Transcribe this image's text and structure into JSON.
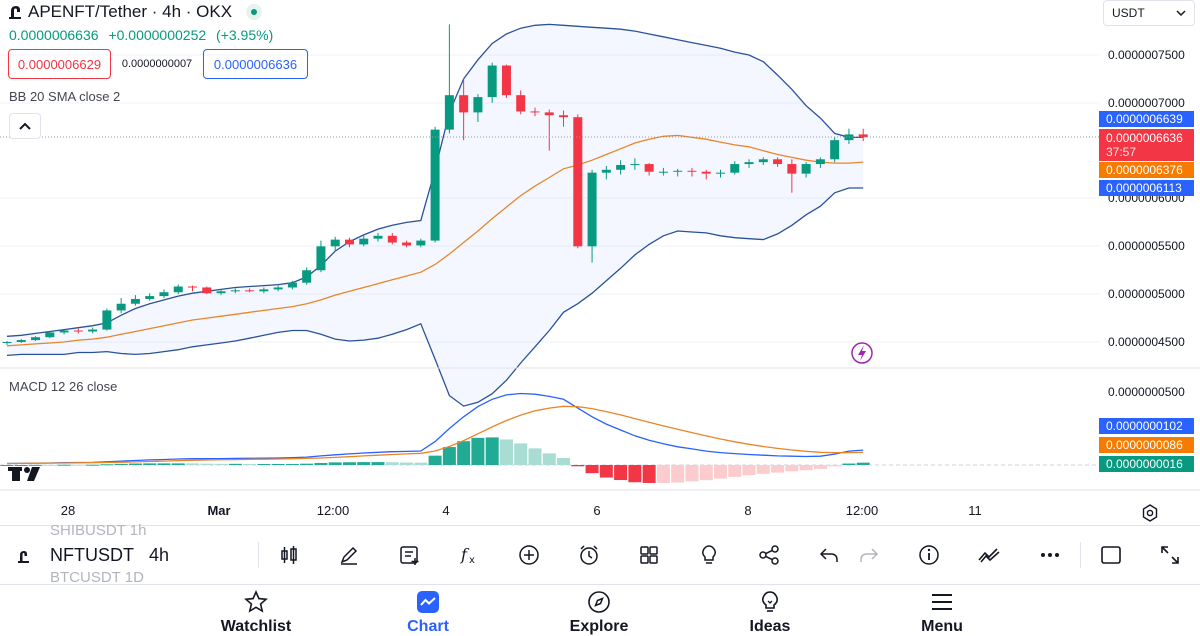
{
  "header": {
    "symbol_title": "APENFT/Tether · 4h · OKX",
    "last_price": "0.0000006636",
    "change_abs": "+0.0000000252",
    "change_pct": "(+3.95%)",
    "bid": "0.0000006629",
    "spread": "0.0000000007",
    "ask": "0.0000006636",
    "currency": "USDT"
  },
  "indicators": {
    "bb_legend": "BB 20 SMA close 2",
    "macd_legend": "MACD 12 26 close"
  },
  "price_axis": {
    "labels": [
      "0.0000007500",
      "0.0000007000",
      "0.0000006000",
      "0.0000005500",
      "0.0000005000",
      "0.0000004500"
    ],
    "tags": {
      "bb_upper": "0.0000006639",
      "last": "0.0000006636",
      "countdown": "37:57",
      "bb_basis": "0.0000006376",
      "bb_lower": "0.0000006113"
    }
  },
  "macd_axis": {
    "labels": [
      "0.0000000500"
    ],
    "tags": {
      "macd": "0.0000000102",
      "signal": "0.0000000086",
      "hist": "0.0000000016"
    }
  },
  "time_axis": {
    "labels": [
      "28",
      "Mar",
      "12:00",
      "4",
      "6",
      "8",
      "12:00",
      "11"
    ]
  },
  "colors": {
    "up": "#089981",
    "down": "#f23645",
    "bb_band": "#2a5298",
    "bb_basis": "#e8862a",
    "macd_line": "#2962ff",
    "signal_line": "#e8862a",
    "accent": "#2962ff"
  },
  "toolbar": {
    "ghost_above": "SHIBUSDT  1h",
    "symbol": "NFTUSDT",
    "interval": "4h",
    "ghost_below": "BTCUSDT  1D",
    "buttons": [
      "candles-icon",
      "draw-icon",
      "add-note-icon",
      "indicators-icon",
      "add-icon",
      "alert-icon",
      "layouts-icon",
      "ideas-bulb-icon",
      "share-icon",
      "undo-icon",
      "redo-icon",
      "info-icon",
      "trend-icon",
      "more-icon",
      "fullscreen-square-icon",
      "expand-icon"
    ]
  },
  "nav": {
    "items": [
      {
        "label": "Watchlist",
        "icon": "star-icon"
      },
      {
        "label": "Chart",
        "icon": "chart-icon"
      },
      {
        "label": "Explore",
        "icon": "compass-icon"
      },
      {
        "label": "Ideas",
        "icon": "bulb-icon"
      },
      {
        "label": "Menu",
        "icon": "menu-icon"
      }
    ]
  },
  "chart_data": {
    "type": "candlestick",
    "title": "APENFT/Tether · 4h · OKX",
    "ylim": [
      4.3e-07,
      7.9e-07
    ],
    "candles": [
      [
        4.49e-07,
        4.5e-07,
        4.47e-07,
        4.51e-07
      ],
      [
        4.5e-07,
        4.52e-07,
        4.49e-07,
        4.53e-07
      ],
      [
        4.52e-07,
        4.55e-07,
        4.51e-07,
        4.56e-07
      ],
      [
        4.55e-07,
        4.6e-07,
        4.54e-07,
        4.61e-07
      ],
      [
        4.6e-07,
        4.62e-07,
        4.58e-07,
        4.63e-07
      ],
      [
        4.62e-07,
        4.61e-07,
        4.59e-07,
        4.64e-07
      ],
      [
        4.61e-07,
        4.63e-07,
        4.59e-07,
        4.65e-07
      ],
      [
        4.63e-07,
        4.83e-07,
        4.62e-07,
        4.85e-07
      ],
      [
        4.83e-07,
        4.9e-07,
        4.8e-07,
        4.96e-07
      ],
      [
        4.9e-07,
        4.95e-07,
        4.88e-07,
        4.99e-07
      ],
      [
        4.95e-07,
        4.98e-07,
        4.93e-07,
        5.01e-07
      ],
      [
        4.98e-07,
        5.02e-07,
        4.96e-07,
        5.05e-07
      ],
      [
        5.02e-07,
        5.08e-07,
        5e-07,
        5.1e-07
      ],
      [
        5.08e-07,
        5.07e-07,
        5.03e-07,
        5.09e-07
      ],
      [
        5.07e-07,
        5.01e-07,
        5e-07,
        5.08e-07
      ],
      [
        5.01e-07,
        5.03e-07,
        4.99e-07,
        5.05e-07
      ],
      [
        5.03e-07,
        5.04e-07,
        5.01e-07,
        5.06e-07
      ],
      [
        5.04e-07,
        5.03e-07,
        5.02e-07,
        5.06e-07
      ],
      [
        5.03e-07,
        5.05e-07,
        5.01e-07,
        5.07e-07
      ],
      [
        5.05e-07,
        5.07e-07,
        5.03e-07,
        5.09e-07
      ],
      [
        5.07e-07,
        5.12e-07,
        5.05e-07,
        5.14e-07
      ],
      [
        5.12e-07,
        5.25e-07,
        5.1e-07,
        5.28e-07
      ],
      [
        5.25e-07,
        5.5e-07,
        5.23e-07,
        5.56e-07
      ],
      [
        5.5e-07,
        5.57e-07,
        5.45e-07,
        5.6e-07
      ],
      [
        5.57e-07,
        5.52e-07,
        5.49e-07,
        5.59e-07
      ],
      [
        5.52e-07,
        5.58e-07,
        5.5e-07,
        5.61e-07
      ],
      [
        5.58e-07,
        5.61e-07,
        5.55e-07,
        5.64e-07
      ],
      [
        5.61e-07,
        5.54e-07,
        5.52e-07,
        5.64e-07
      ],
      [
        5.54e-07,
        5.51e-07,
        5.49e-07,
        5.56e-07
      ],
      [
        5.51e-07,
        5.56e-07,
        5.49e-07,
        5.58e-07
      ],
      [
        5.56e-07,
        6.72e-07,
        5.54e-07,
        6.75e-07
      ],
      [
        6.72e-07,
        7.08e-07,
        6.68e-07,
        7.82e-07
      ],
      [
        7.08e-07,
        6.9e-07,
        6.61e-07,
        7.25e-07
      ],
      [
        6.9e-07,
        7.06e-07,
        6.8e-07,
        7.09e-07
      ],
      [
        7.06e-07,
        7.39e-07,
        7e-07,
        7.42e-07
      ],
      [
        7.39e-07,
        7.08e-07,
        7.05e-07,
        7.4e-07
      ],
      [
        7.08e-07,
        6.91e-07,
        6.88e-07,
        7.13e-07
      ],
      [
        6.91e-07,
        6.9e-07,
        6.86e-07,
        6.95e-07
      ],
      [
        6.9e-07,
        6.87e-07,
        6.5e-07,
        6.93e-07
      ],
      [
        6.87e-07,
        6.85e-07,
        6.75e-07,
        6.92e-07
      ],
      [
        6.85e-07,
        5.5e-07,
        5.48e-07,
        6.88e-07
      ],
      [
        5.5e-07,
        6.27e-07,
        5.33e-07,
        6.3e-07
      ],
      [
        6.27e-07,
        6.3e-07,
        6.2e-07,
        6.34e-07
      ],
      [
        6.3e-07,
        6.35e-07,
        6.25e-07,
        6.4e-07
      ],
      [
        6.35e-07,
        6.36e-07,
        6.3e-07,
        6.42e-07
      ],
      [
        6.36e-07,
        6.28e-07,
        6.24e-07,
        6.37e-07
      ],
      [
        6.28e-07,
        6.28e-07,
        6.24e-07,
        6.32e-07
      ],
      [
        6.28e-07,
        6.29e-07,
        6.23e-07,
        6.31e-07
      ],
      [
        6.29e-07,
        6.28e-07,
        6.23e-07,
        6.32e-07
      ],
      [
        6.28e-07,
        6.26e-07,
        6.2e-07,
        6.3e-07
      ],
      [
        6.26e-07,
        6.27e-07,
        6.22e-07,
        6.3e-07
      ],
      [
        6.27e-07,
        6.36e-07,
        6.25e-07,
        6.39e-07
      ],
      [
        6.36e-07,
        6.38e-07,
        6.32e-07,
        6.41e-07
      ],
      [
        6.38e-07,
        6.41e-07,
        6.35e-07,
        6.43e-07
      ],
      [
        6.41e-07,
        6.36e-07,
        6.33e-07,
        6.43e-07
      ],
      [
        6.36e-07,
        6.26e-07,
        6.06e-07,
        6.41e-07
      ],
      [
        6.26e-07,
        6.36e-07,
        6.22e-07,
        6.38e-07
      ],
      [
        6.36e-07,
        6.41e-07,
        6.32e-07,
        6.43e-07
      ],
      [
        6.41e-07,
        6.61e-07,
        6.38e-07,
        6.64e-07
      ],
      [
        6.61e-07,
        6.67e-07,
        6.57e-07,
        6.73e-07
      ],
      [
        6.67e-07,
        6.64e-07,
        6.6e-07,
        6.73e-07
      ]
    ],
    "bb_upper": [
      4.56e-07,
      4.57e-07,
      4.59e-07,
      4.61e-07,
      4.63e-07,
      4.65e-07,
      4.67e-07,
      4.7e-07,
      4.78e-07,
      4.85e-07,
      4.9e-07,
      4.94e-07,
      4.98e-07,
      5.01e-07,
      5.03e-07,
      5.05e-07,
      5.07e-07,
      5.08e-07,
      5.09e-07,
      5.1e-07,
      5.12e-07,
      5.18e-07,
      5.3e-07,
      5.45e-07,
      5.55e-07,
      5.62e-07,
      5.68e-07,
      5.72e-07,
      5.75e-07,
      5.77e-07,
      6.3e-07,
      6.9e-07,
      7.25e-07,
      7.45e-07,
      7.62e-07,
      7.72e-07,
      7.78e-07,
      7.81e-07,
      7.82e-07,
      7.81e-07,
      7.8e-07,
      7.79e-07,
      7.78e-07,
      7.77e-07,
      7.75e-07,
      7.72e-07,
      7.69e-07,
      7.66e-07,
      7.63e-07,
      7.6e-07,
      7.57e-07,
      7.53e-07,
      7.5e-07,
      7.43e-07,
      7.29e-07,
      7.14e-07,
      6.97e-07,
      6.84e-07,
      6.68e-07,
      6.64e-07,
      6.64e-07
    ],
    "bb_basis": [
      4.46e-07,
      4.47e-07,
      4.48e-07,
      4.49e-07,
      4.5e-07,
      4.52e-07,
      4.53e-07,
      4.55e-07,
      4.58e-07,
      4.61e-07,
      4.64e-07,
      4.67e-07,
      4.7e-07,
      4.73e-07,
      4.75e-07,
      4.77e-07,
      4.79e-07,
      4.81e-07,
      4.83e-07,
      4.85e-07,
      4.87e-07,
      4.9e-07,
      4.94e-07,
      4.99e-07,
      5.03e-07,
      5.07e-07,
      5.11e-07,
      5.15e-07,
      5.19e-07,
      5.23e-07,
      5.31e-07,
      5.42e-07,
      5.54e-07,
      5.66e-07,
      5.79e-07,
      5.91e-07,
      6.03e-07,
      6.13e-07,
      6.22e-07,
      6.31e-07,
      6.35e-07,
      6.4e-07,
      6.46e-07,
      6.52e-07,
      6.58e-07,
      6.62e-07,
      6.65e-07,
      6.66e-07,
      6.64e-07,
      6.62e-07,
      6.59e-07,
      6.56e-07,
      6.54e-07,
      6.5e-07,
      6.46e-07,
      6.43e-07,
      6.4e-07,
      6.38e-07,
      6.37e-07,
      6.37e-07,
      6.38e-07
    ],
    "bb_lower": [
      4.36e-07,
      4.37e-07,
      4.37e-07,
      4.37e-07,
      4.37e-07,
      4.39e-07,
      4.39e-07,
      4.4e-07,
      4.38e-07,
      4.37e-07,
      4.38e-07,
      4.4e-07,
      4.42e-07,
      4.45e-07,
      4.47e-07,
      4.49e-07,
      4.51e-07,
      4.54e-07,
      4.57e-07,
      4.6e-07,
      4.62e-07,
      4.62e-07,
      4.58e-07,
      4.53e-07,
      4.51e-07,
      4.52e-07,
      4.54e-07,
      4.58e-07,
      4.63e-07,
      4.69e-07,
      4.32e-07,
      3.94e-07,
      3.83e-07,
      3.87e-07,
      3.96e-07,
      4.1e-07,
      4.28e-07,
      4.45e-07,
      4.62e-07,
      4.81e-07,
      4.9e-07,
      5.01e-07,
      5.14e-07,
      5.27e-07,
      5.41e-07,
      5.52e-07,
      5.61e-07,
      5.66e-07,
      5.65e-07,
      5.64e-07,
      5.61e-07,
      5.59e-07,
      5.58e-07,
      5.57e-07,
      5.63e-07,
      5.72e-07,
      5.83e-07,
      5.92e-07,
      6.06e-07,
      6.11e-07,
      6.11e-07
    ],
    "macd": [
      1e-09,
      1.1e-09,
      1.3e-09,
      1.4e-09,
      1.6e-09,
      1.7e-09,
      1.8e-09,
      2.2e-09,
      2.7e-09,
      3.1e-09,
      3.5e-09,
      3.8e-09,
      4.1e-09,
      4.3e-09,
      4.3e-09,
      4.4e-09,
      4.5e-09,
      4.6e-09,
      4.7e-09,
      4.8e-09,
      5e-09,
      5.4e-09,
      6.2e-09,
      7e-09,
      7.6e-09,
      8.2e-09,
      8.7e-09,
      9.1e-09,
      9.3e-09,
      9.6e-09,
      1.6e-08,
      2.5e-08,
      3.3e-08,
      4e-08,
      4.5e-08,
      4.8e-08,
      4.9e-08,
      4.85e-08,
      4.7e-08,
      4.5e-08,
      3.9e-08,
      3.3e-08,
      2.8e-08,
      2.4e-08,
      2e-08,
      1.7e-08,
      1.45e-08,
      1.25e-08,
      1.1e-08,
      9.5e-09,
      8.5e-09,
      7.8e-09,
      7.2e-09,
      6.7e-09,
      6.2e-09,
      6e-09,
      5.8e-09,
      6e-09,
      7.5e-09,
      9.5e-09,
      1.02e-08
    ],
    "signal": [
      1e-09,
      1.1e-09,
      1.2e-09,
      1.3e-09,
      1.4e-09,
      1.5e-09,
      1.6e-09,
      1.7e-09,
      1.9e-09,
      2.1e-09,
      2.4e-09,
      2.7e-09,
      3e-09,
      3.2e-09,
      3.4e-09,
      3.6e-09,
      3.7e-09,
      3.9e-09,
      4e-09,
      4.1e-09,
      4.3e-09,
      4.5e-09,
      4.8e-09,
      5.2e-09,
      5.7e-09,
      6.2e-09,
      6.7e-09,
      7.2e-09,
      7.6e-09,
      8e-09,
      9.6e-09,
      1.27e-08,
      1.67e-08,
      2.14e-08,
      2.61e-08,
      3.05e-08,
      3.42e-08,
      3.71e-08,
      3.9e-08,
      4.02e-08,
      3.99e-08,
      3.86e-08,
      3.66e-08,
      3.43e-08,
      3.18e-08,
      2.93e-08,
      2.68e-08,
      2.45e-08,
      2.22e-08,
      1.99e-08,
      1.78e-08,
      1.59e-08,
      1.42e-08,
      1.27e-08,
      1.14e-08,
      1.03e-08,
      9.4e-09,
      8.7e-09,
      8.4e-09,
      8.5e-09,
      8.6e-09
    ]
  }
}
